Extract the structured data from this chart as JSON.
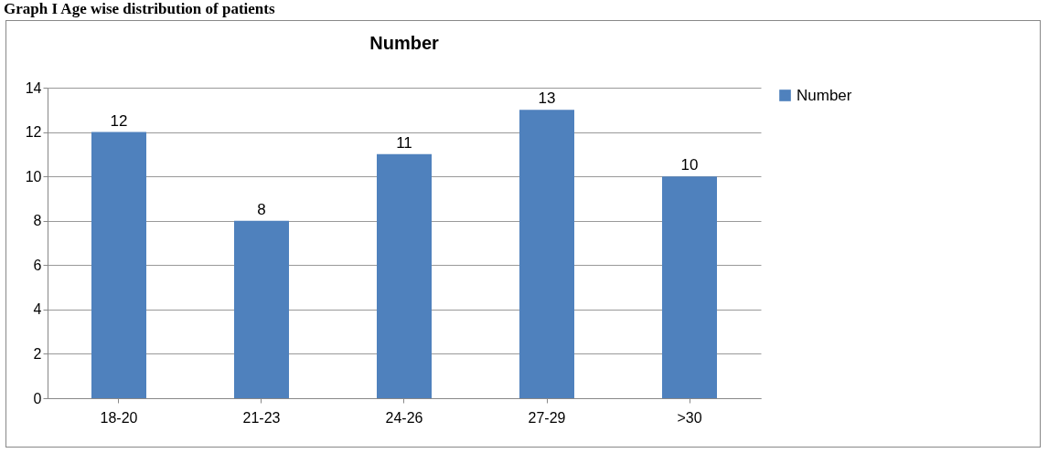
{
  "chart_data": {
    "type": "bar",
    "title": "Number",
    "annotations": [
      "Graph I Age wise distribution of patients"
    ],
    "categories": [
      "18-20",
      "21-23",
      "24-26",
      "27-29",
      ">30"
    ],
    "series": [
      {
        "name": "Number",
        "color": "#4f81bd",
        "values": [
          12,
          8,
          11,
          13,
          10
        ]
      }
    ],
    "ylim": [
      0,
      14
    ],
    "yticks": [
      0,
      2,
      4,
      6,
      8,
      10,
      12,
      14
    ],
    "grid": "y",
    "legend": "right",
    "data_labels": true
  }
}
